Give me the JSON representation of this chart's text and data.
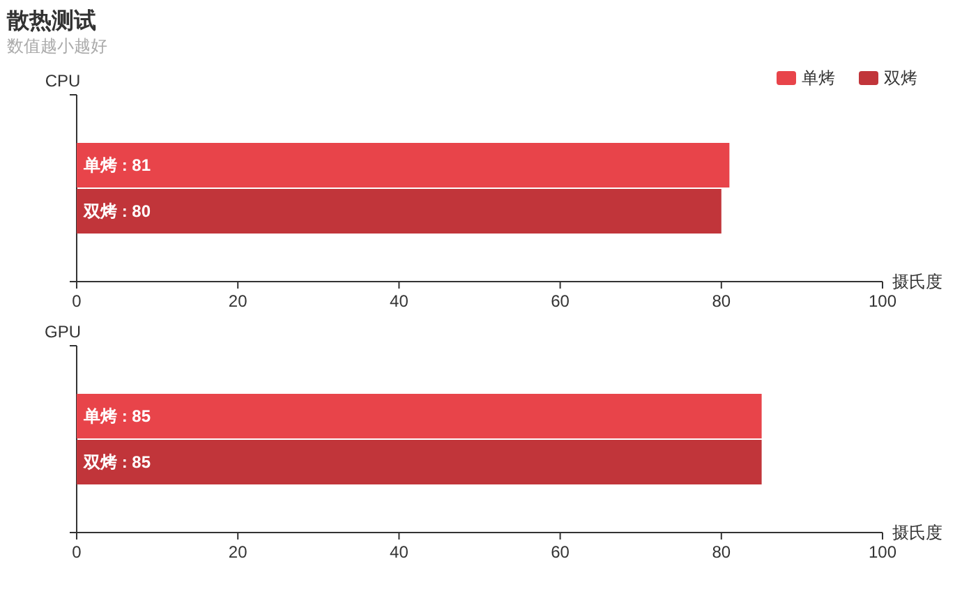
{
  "chart_data": [
    {
      "type": "bar",
      "title": "散热测试",
      "subtitle": "数值越小越好",
      "orientation": "horizontal",
      "ylabel": "CPU",
      "xlabel": "摄氏度",
      "categories": [
        null
      ],
      "xlim": [
        0,
        100
      ],
      "xticks": [
        0,
        20,
        40,
        60,
        80,
        100
      ],
      "legend": "top right",
      "series": [
        {
          "name": "单烤",
          "color": "#e8444a",
          "values": [
            81
          ],
          "value_labels": [
            "单烤 : 81"
          ]
        },
        {
          "name": "双烤",
          "color": "#c1353a",
          "values": [
            80
          ],
          "value_labels": [
            "双烤 : 80"
          ]
        }
      ]
    },
    {
      "type": "bar",
      "orientation": "horizontal",
      "ylabel": "GPU",
      "xlabel": "摄氏度",
      "categories": [
        null
      ],
      "xlim": [
        0,
        100
      ],
      "xticks": [
        0,
        20,
        40,
        60,
        80,
        100
      ],
      "series": [
        {
          "color": "#e8444a",
          "values": [
            85
          ],
          "value_labels": [
            "单烤 : 85"
          ]
        },
        {
          "color": "#c1353a",
          "values": [
            85
          ],
          "value_labels": [
            "双烤 : 85"
          ]
        }
      ]
    }
  ]
}
